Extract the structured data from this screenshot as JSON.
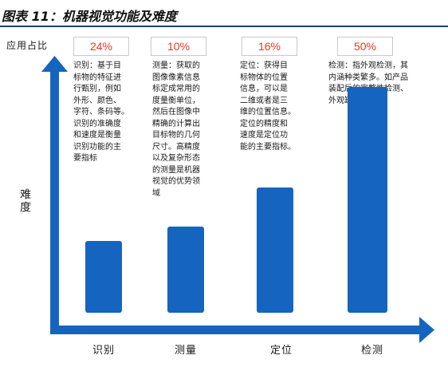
{
  "title": "图表 11：机器视觉功能及难度",
  "chart_data": {
    "type": "bar",
    "ylabel_top": "应用占比",
    "ylabel_side": "难度",
    "categories": [
      "识别",
      "测量",
      "定位",
      "检测"
    ],
    "difficulty": [
      1,
      1.2,
      1.75,
      3.15
    ],
    "application_share": [
      "24%",
      "10%",
      "16%",
      "50%"
    ],
    "descriptions": [
      "识别：基于目\n标物的特征进\n行甄别，例如\n外形、颜色、\n字符、条码等。\n识别的准确度\n和速度是衡量\n识别功能的主\n要指标",
      "测量：获取的\n图像像素信息\n标定成常用的\n度量衡单位，\n然后在图像中\n精确的计算出\n目标物的几何\n尺寸。高精度\n以及复杂形态\n的测量是机器\n视觉的优势领\n域",
      "定位：获得目\n标物体的位置\n信息，可以是\n二维或者是三\n维的位置信息。\n定位的精度和\n速度是定位功\n能的主要指标。",
      "检测：指外观检测，其\n内涵种类繁多。如产品\n装配后的完整性检测、\n外观缺陷检测等。"
    ],
    "colors": {
      "bar": "#1565c0",
      "axis": "#1565c0",
      "percent": "#e23b26"
    }
  }
}
